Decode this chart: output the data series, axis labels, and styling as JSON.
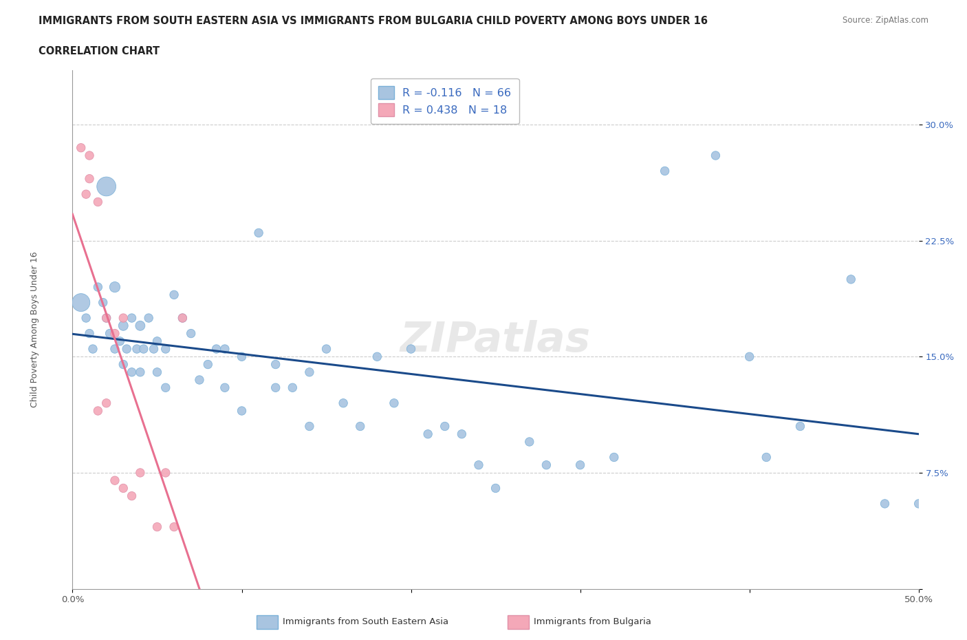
{
  "title_line1": "IMMIGRANTS FROM SOUTH EASTERN ASIA VS IMMIGRANTS FROM BULGARIA CHILD POVERTY AMONG BOYS UNDER 16",
  "title_line2": "CORRELATION CHART",
  "source_text": "Source: ZipAtlas.com",
  "ylabel": "Child Poverty Among Boys Under 16",
  "xlim": [
    0,
    0.5
  ],
  "ylim": [
    0,
    0.335
  ],
  "ytick_positions": [
    0.0,
    0.075,
    0.15,
    0.225,
    0.3
  ],
  "ytick_labels": [
    "",
    "7.5%",
    "15.0%",
    "22.5%",
    "30.0%"
  ],
  "r_blue": -0.116,
  "n_blue": 66,
  "r_pink": 0.438,
  "n_pink": 18,
  "blue_color": "#a8c4e0",
  "pink_color": "#f4a8b8",
  "trendline_blue_color": "#1a4a8a",
  "trendline_pink_color": "#e87090",
  "legend_blue_label": "Immigrants from South Eastern Asia",
  "legend_pink_label": "Immigrants from Bulgaria",
  "watermark": "ZIPatlas",
  "blue_x": [
    0.005,
    0.008,
    0.01,
    0.012,
    0.015,
    0.018,
    0.02,
    0.02,
    0.022,
    0.025,
    0.025,
    0.028,
    0.03,
    0.03,
    0.032,
    0.035,
    0.035,
    0.038,
    0.04,
    0.04,
    0.042,
    0.045,
    0.048,
    0.05,
    0.05,
    0.055,
    0.055,
    0.06,
    0.065,
    0.07,
    0.075,
    0.08,
    0.085,
    0.09,
    0.09,
    0.1,
    0.1,
    0.11,
    0.12,
    0.12,
    0.13,
    0.14,
    0.14,
    0.15,
    0.16,
    0.17,
    0.18,
    0.19,
    0.2,
    0.21,
    0.22,
    0.23,
    0.24,
    0.25,
    0.27,
    0.28,
    0.3,
    0.32,
    0.35,
    0.38,
    0.4,
    0.41,
    0.43,
    0.46,
    0.48,
    0.5
  ],
  "blue_y": [
    0.185,
    0.175,
    0.165,
    0.155,
    0.195,
    0.185,
    0.26,
    0.175,
    0.165,
    0.195,
    0.155,
    0.16,
    0.145,
    0.17,
    0.155,
    0.14,
    0.175,
    0.155,
    0.17,
    0.14,
    0.155,
    0.175,
    0.155,
    0.16,
    0.14,
    0.155,
    0.13,
    0.19,
    0.175,
    0.165,
    0.135,
    0.145,
    0.155,
    0.155,
    0.13,
    0.15,
    0.115,
    0.23,
    0.145,
    0.13,
    0.13,
    0.14,
    0.105,
    0.155,
    0.12,
    0.105,
    0.15,
    0.12,
    0.155,
    0.1,
    0.105,
    0.1,
    0.08,
    0.065,
    0.095,
    0.08,
    0.08,
    0.085,
    0.27,
    0.28,
    0.15,
    0.085,
    0.105,
    0.2,
    0.055,
    0.055
  ],
  "blue_sizes": [
    350,
    80,
    80,
    80,
    80,
    80,
    400,
    80,
    80,
    120,
    80,
    80,
    80,
    100,
    80,
    80,
    80,
    80,
    100,
    80,
    80,
    80,
    80,
    80,
    80,
    80,
    80,
    80,
    80,
    80,
    80,
    80,
    80,
    80,
    80,
    80,
    80,
    80,
    80,
    80,
    80,
    80,
    80,
    80,
    80,
    80,
    80,
    80,
    80,
    80,
    80,
    80,
    80,
    80,
    80,
    80,
    80,
    80,
    80,
    80,
    80,
    80,
    80,
    80,
    80,
    80
  ],
  "pink_x": [
    0.005,
    0.008,
    0.01,
    0.01,
    0.015,
    0.015,
    0.02,
    0.02,
    0.025,
    0.025,
    0.03,
    0.03,
    0.035,
    0.04,
    0.05,
    0.055,
    0.06,
    0.065
  ],
  "pink_y": [
    0.285,
    0.255,
    0.265,
    0.28,
    0.25,
    0.115,
    0.175,
    0.12,
    0.165,
    0.07,
    0.175,
    0.065,
    0.06,
    0.075,
    0.04,
    0.075,
    0.04,
    0.175
  ],
  "pink_sizes": [
    80,
    80,
    80,
    80,
    80,
    80,
    80,
    80,
    80,
    80,
    80,
    80,
    80,
    80,
    80,
    80,
    80,
    80
  ]
}
